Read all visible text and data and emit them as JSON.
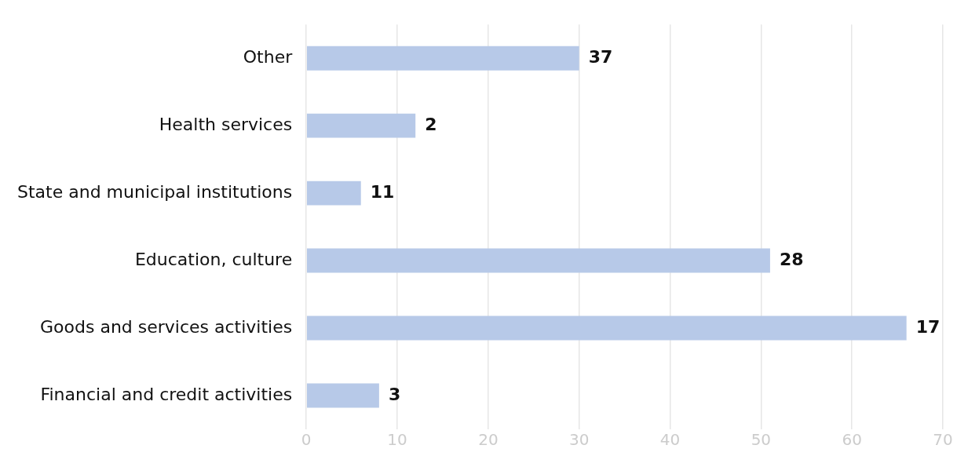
{
  "chart_data": {
    "type": "bar",
    "orientation": "horizontal",
    "categories": [
      "Other",
      "Health services",
      "State and municipal institutions",
      "Education, culture",
      "Goods and services activities",
      "Financial and credit activities"
    ],
    "values": [
      30,
      12,
      6,
      51,
      66,
      8
    ],
    "annotations": [
      {
        "text": "37",
        "x": 30,
        "y": "Other"
      },
      {
        "text": "2",
        "x": 12,
        "y": "Health services"
      },
      {
        "text": "11",
        "x": 6,
        "y": "State and municipal institutions"
      },
      {
        "text": "28",
        "x": 51,
        "y": "Education, culture"
      },
      {
        "text": "17",
        "x": 66,
        "y": "Goods and services activities"
      },
      {
        "text": "3",
        "x": 8,
        "y": "Financial and credit activities"
      }
    ],
    "color": "#b7c9e8",
    "xlim": [
      0,
      70
    ],
    "xticks": [
      0,
      10,
      20,
      30,
      40,
      50,
      60,
      70
    ],
    "grid": "x",
    "legend": false
  }
}
